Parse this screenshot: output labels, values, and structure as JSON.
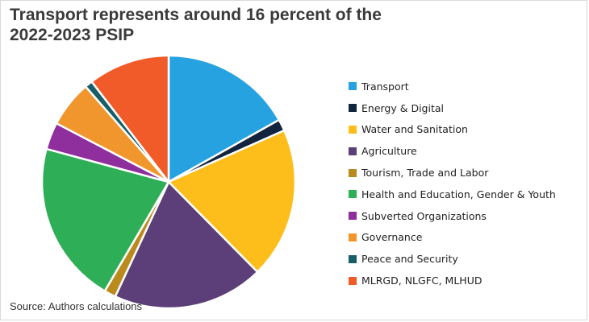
{
  "title": {
    "line1": "Transport represents around 16 percent of the",
    "line2": "2022-2023 PSIP"
  },
  "source": "Source: Authors calculations",
  "chart_data": {
    "type": "pie",
    "title": "Transport represents around 16 percent of the 2022-2023 PSIP",
    "start_angle_deg": 0,
    "direction": "clockwise",
    "legend_position": "right",
    "slices": [
      {
        "label": "Transport",
        "value": 17,
        "color": "#27A2E0"
      },
      {
        "label": "Energy & Digital",
        "value": 1.5,
        "color": "#13243F"
      },
      {
        "label": "Water and Sanitation",
        "value": 19.5,
        "color": "#FDBD1B"
      },
      {
        "label": "Agriculture",
        "value": 19.5,
        "color": "#5C3F78"
      },
      {
        "label": "Tourism, Trade and Labor",
        "value": 1.5,
        "color": "#BB8A1D"
      },
      {
        "label": "Health and Education, Gender & Youth",
        "value": 21,
        "color": "#2EAF57"
      },
      {
        "label": "Subverted Organizations",
        "value": 3.5,
        "color": "#8E2F9D"
      },
      {
        "label": "Governance",
        "value": 6,
        "color": "#F0962C"
      },
      {
        "label": "Peace and Security",
        "value": 1,
        "color": "#175E69"
      },
      {
        "label": "MLRGD, NLGFC, MLHUD",
        "value": 10.5,
        "color": "#F15A29"
      }
    ]
  }
}
